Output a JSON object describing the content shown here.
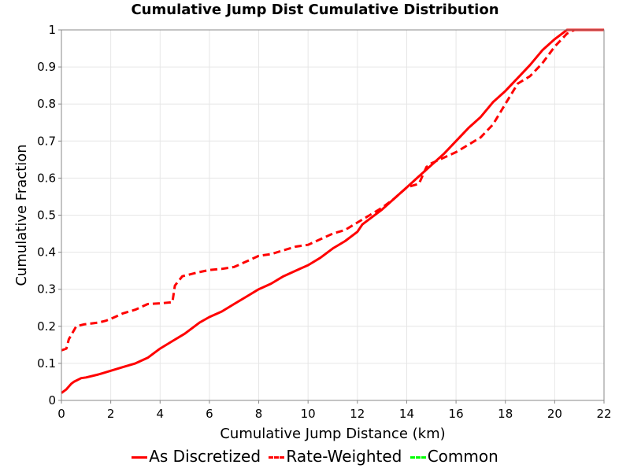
{
  "chart_data": {
    "type": "line",
    "title": "Cumulative Jump Dist Cumulative Distribution",
    "xlabel": "Cumulative Jump Distance (km)",
    "ylabel": "Cumulative Fraction",
    "xlim": [
      0,
      22
    ],
    "ylim": [
      0,
      1
    ],
    "xticks": [
      0,
      2,
      4,
      6,
      8,
      10,
      12,
      14,
      16,
      18,
      20,
      22
    ],
    "yticks": [
      0,
      0.1,
      0.2,
      0.3,
      0.4,
      0.5,
      0.6,
      0.7,
      0.8,
      0.9,
      1
    ],
    "ytick_labels": [
      "0",
      "0.1",
      "0.2",
      "0.3",
      "0.4",
      "0.5",
      "0.6",
      "0.7",
      "0.8",
      "0.9",
      "1"
    ],
    "grid": true,
    "legend_position": "bottom",
    "series": [
      {
        "name": "As Discretized",
        "color": "#ff0000",
        "style": "solid",
        "x": [
          0,
          0.2,
          0.4,
          0.5,
          0.8,
          1.0,
          1.5,
          2.0,
          2.5,
          3.0,
          3.5,
          4.0,
          4.5,
          5.0,
          5.4,
          5.6,
          6.0,
          6.5,
          7.0,
          7.5,
          8.0,
          8.5,
          9.0,
          9.5,
          10.0,
          10.5,
          11.0,
          11.5,
          12.0,
          12.2,
          12.5,
          13.0,
          13.5,
          14.0,
          14.5,
          15.0,
          15.5,
          16.0,
          16.5,
          17.0,
          17.5,
          18.0,
          18.5,
          19.0,
          19.5,
          20.0,
          20.5,
          20.8,
          22.0
        ],
        "y": [
          0.02,
          0.03,
          0.045,
          0.05,
          0.06,
          0.062,
          0.07,
          0.08,
          0.09,
          0.1,
          0.115,
          0.14,
          0.16,
          0.18,
          0.2,
          0.21,
          0.225,
          0.24,
          0.26,
          0.28,
          0.3,
          0.315,
          0.335,
          0.35,
          0.365,
          0.385,
          0.41,
          0.43,
          0.455,
          0.475,
          0.49,
          0.515,
          0.545,
          0.575,
          0.605,
          0.635,
          0.665,
          0.7,
          0.735,
          0.765,
          0.805,
          0.835,
          0.87,
          0.905,
          0.945,
          0.975,
          1.0,
          1.0,
          1.0
        ]
      },
      {
        "name": "Rate-Weighted",
        "color": "#ff0000",
        "style": "dashed",
        "x": [
          0,
          0.2,
          0.3,
          0.6,
          0.9,
          1.5,
          1.8,
          2.0,
          2.5,
          3.0,
          3.5,
          4.0,
          4.5,
          4.6,
          4.9,
          5.5,
          6.0,
          6.5,
          7.0,
          7.5,
          8.0,
          8.5,
          9.0,
          9.5,
          10.0,
          10.5,
          11.0,
          11.5,
          12.0,
          12.5,
          13.0,
          13.5,
          14.0,
          14.5,
          14.8,
          15.0,
          15.5,
          16.0,
          16.5,
          17.0,
          17.5,
          18.0,
          18.5,
          19.0,
          19.5,
          20.0,
          20.5,
          20.8,
          22.0
        ],
        "y": [
          0.135,
          0.14,
          0.165,
          0.2,
          0.205,
          0.21,
          0.215,
          0.22,
          0.235,
          0.245,
          0.26,
          0.262,
          0.265,
          0.31,
          0.335,
          0.345,
          0.352,
          0.355,
          0.36,
          0.375,
          0.39,
          0.395,
          0.405,
          0.415,
          0.42,
          0.435,
          0.45,
          0.46,
          0.48,
          0.5,
          0.52,
          0.545,
          0.575,
          0.585,
          0.63,
          0.64,
          0.655,
          0.67,
          0.69,
          0.71,
          0.745,
          0.8,
          0.855,
          0.875,
          0.91,
          0.955,
          0.99,
          1.0,
          1.0
        ]
      },
      {
        "name": "Common",
        "color": "#00ff00",
        "style": "dashed",
        "x": [],
        "y": []
      }
    ]
  }
}
